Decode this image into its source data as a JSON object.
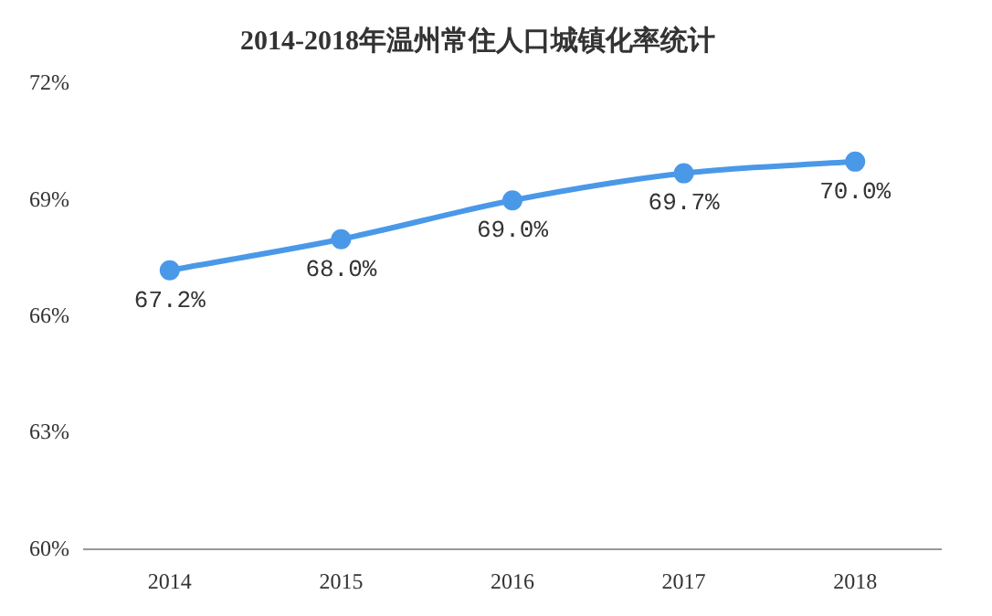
{
  "chart_data": {
    "type": "line",
    "title": "2014-2018年温州常住人口城镇化率统计",
    "categories": [
      "2014",
      "2015",
      "2016",
      "2017",
      "2018"
    ],
    "series": [
      {
        "color": "#4a98e8",
        "values": [
          67.2,
          68.0,
          69.0,
          69.7,
          70.0
        ],
        "value_labels": [
          "67.2%",
          "68.0%",
          "69.0%",
          "69.7%",
          "70.0%"
        ]
      }
    ],
    "ylim": [
      60,
      72
    ],
    "yticks": [
      {
        "value": 60,
        "label": "60%"
      },
      {
        "value": 63,
        "label": "63%"
      },
      {
        "value": 66,
        "label": "66%"
      },
      {
        "value": 69,
        "label": "69%"
      },
      {
        "value": 72,
        "label": "72%"
      }
    ],
    "grid": false,
    "legend": false,
    "marker": "circle",
    "line_style": "solid"
  }
}
